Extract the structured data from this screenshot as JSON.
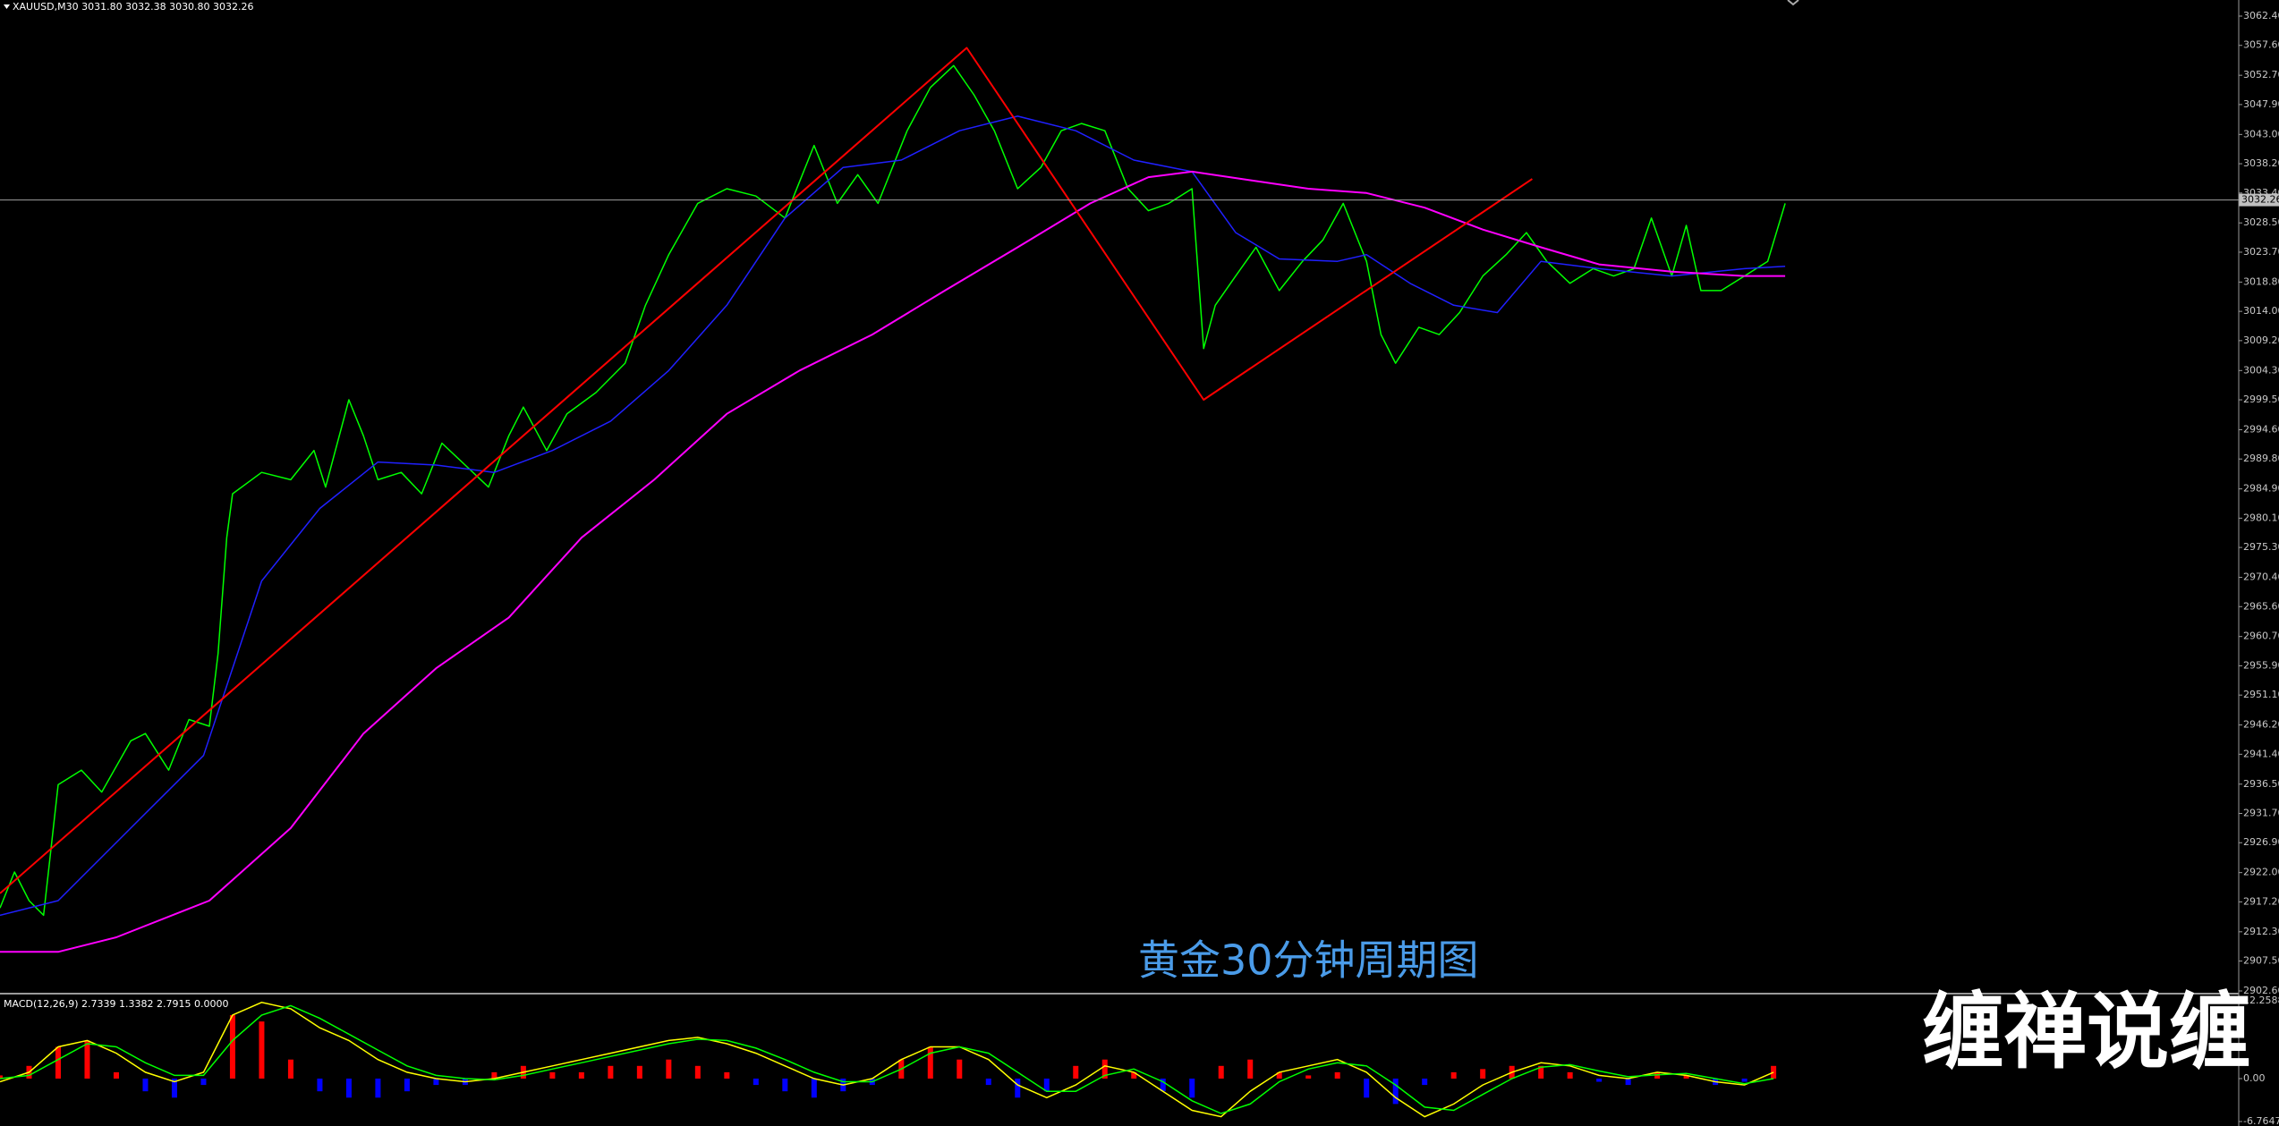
{
  "chart_data": [
    {
      "type": "line",
      "title": "XAUUSD,M30 3031.80 3032.38 3030.80 3032.26",
      "annotation": "黄金30分钟周期图",
      "watermark": "缠禅说缠",
      "xlim": [
        0,
        770
      ],
      "ylim": [
        2902.6,
        3062.4
      ],
      "yticks": [
        {
          "value": 3062.4,
          "label": "3062.40"
        },
        {
          "value": 3057.6,
          "label": "3057.60"
        },
        {
          "value": 3052.7,
          "label": "3052.70"
        },
        {
          "value": 3047.9,
          "label": "3047.90"
        },
        {
          "value": 3043.0,
          "label": "3043.00"
        },
        {
          "value": 3038.2,
          "label": "3038.20"
        },
        {
          "value": 3033.4,
          "label": "3033.40"
        },
        {
          "value": 3028.5,
          "label": "3028.50"
        },
        {
          "value": 3023.7,
          "label": "3023.70"
        },
        {
          "value": 3018.8,
          "label": "3018.80"
        },
        {
          "value": 3014.0,
          "label": "3014.00"
        },
        {
          "value": 3009.2,
          "label": "3009.20"
        },
        {
          "value": 3004.3,
          "label": "3004.30"
        },
        {
          "value": 2999.5,
          "label": "2999.50"
        },
        {
          "value": 2994.6,
          "label": "2994.60"
        },
        {
          "value": 2989.8,
          "label": "2989.80"
        },
        {
          "value": 2984.9,
          "label": "2984.90"
        },
        {
          "value": 2980.1,
          "label": "2980.10"
        },
        {
          "value": 2975.3,
          "label": "2975.30"
        },
        {
          "value": 2970.4,
          "label": "2970.40"
        },
        {
          "value": 2965.6,
          "label": "2965.60"
        },
        {
          "value": 2960.7,
          "label": "2960.70"
        },
        {
          "value": 2955.9,
          "label": "2955.90"
        },
        {
          "value": 2951.1,
          "label": "2951.10"
        },
        {
          "value": 2946.2,
          "label": "2946.20"
        },
        {
          "value": 2941.4,
          "label": "2941.40"
        },
        {
          "value": 2936.5,
          "label": "2936.50"
        },
        {
          "value": 2931.7,
          "label": "2931.70"
        },
        {
          "value": 2926.9,
          "label": "2926.90"
        },
        {
          "value": 2922.0,
          "label": "2922.00"
        },
        {
          "value": 2917.2,
          "label": "2917.20"
        },
        {
          "value": 2912.3,
          "label": "2912.30"
        },
        {
          "value": 2907.5,
          "label": "2907.50"
        },
        {
          "value": 2902.6,
          "label": "2902.60"
        }
      ],
      "current_price": 3032.26,
      "series": [
        {
          "color": "#00ff00",
          "width": 1.5,
          "x": [
            0,
            5,
            10,
            15,
            20,
            28,
            35,
            45,
            50,
            58,
            65,
            72,
            75,
            78,
            80,
            90,
            100,
            108,
            112,
            120,
            125,
            130,
            138,
            145,
            152,
            160,
            168,
            175,
            180,
            188,
            195,
            205,
            215,
            222,
            230,
            240,
            250,
            260,
            270,
            280,
            288,
            295,
            302,
            312,
            320,
            328,
            335,
            342,
            350,
            358,
            365,
            372,
            380,
            388,
            395,
            402,
            410,
            414,
            418,
            425,
            432,
            440,
            448,
            455,
            462,
            470,
            475,
            480,
            488,
            495,
            502,
            510,
            518,
            525,
            532,
            540,
            548,
            555,
            562,
            568,
            575,
            580,
            585,
            592,
            600,
            608,
            614
          ],
          "values": [
            2916.2,
            2922.1,
            2917.4,
            2915.0,
            2936.4,
            2938.8,
            2935.2,
            2943.6,
            2944.8,
            2938.8,
            2947.1,
            2946.0,
            2957.9,
            2976.9,
            2984.1,
            2987.6,
            2986.4,
            2991.2,
            2985.2,
            2999.5,
            2993.6,
            2986.4,
            2987.6,
            2984.1,
            2992.4,
            2988.8,
            2985.2,
            2993.6,
            2998.3,
            2991.2,
            2997.2,
            3000.7,
            3005.5,
            3015.0,
            3023.3,
            3031.7,
            3034.1,
            3032.9,
            3029.3,
            3041.2,
            3031.7,
            3036.4,
            3031.7,
            3043.6,
            3050.7,
            3054.3,
            3049.5,
            3043.6,
            3034.1,
            3037.6,
            3043.6,
            3044.8,
            3043.6,
            3034.1,
            3030.5,
            3031.7,
            3034.1,
            3007.9,
            3015.0,
            3019.8,
            3024.5,
            3017.4,
            3022.2,
            3025.7,
            3031.7,
            3022.2,
            3010.2,
            3005.5,
            3011.4,
            3010.2,
            3013.8,
            3019.8,
            3023.3,
            3026.9,
            3022.2,
            3018.6,
            3021.0,
            3019.8,
            3021.0,
            3029.3,
            3019.8,
            3028.1,
            3017.4,
            3017.4,
            3019.8,
            3022.2,
            3031.7
          ]
        },
        {
          "color": "#2020ff",
          "width": 1.5,
          "x": [
            0,
            20,
            50,
            70,
            90,
            110,
            130,
            150,
            170,
            190,
            210,
            230,
            250,
            270,
            290,
            310,
            330,
            350,
            370,
            390,
            410,
            425,
            440,
            460,
            470,
            485,
            500,
            515,
            530,
            550,
            575,
            600,
            614
          ],
          "values": [
            2915.0,
            2917.4,
            2931.7,
            2941.2,
            2969.8,
            2981.7,
            2989.3,
            2988.8,
            2987.6,
            2991.2,
            2996.0,
            3004.3,
            3015.0,
            3029.3,
            3037.6,
            3038.8,
            3043.6,
            3046.0,
            3043.6,
            3038.8,
            3036.9,
            3026.9,
            3022.6,
            3022.2,
            3023.3,
            3018.6,
            3015.0,
            3013.8,
            3022.2,
            3021.0,
            3019.8,
            3021.0,
            3021.4
          ]
        },
        {
          "color": "#ff00ff",
          "width": 2,
          "x": [
            0,
            20,
            40,
            72,
            100,
            125,
            150,
            175,
            200,
            225,
            250,
            275,
            300,
            325,
            350,
            375,
            395,
            410,
            430,
            450,
            470,
            490,
            510,
            530,
            550,
            575,
            600,
            614
          ],
          "values": [
            2909.0,
            2909.0,
            2911.4,
            2917.4,
            2929.3,
            2944.8,
            2955.5,
            2963.8,
            2976.9,
            2986.4,
            2997.2,
            3004.3,
            3010.2,
            3017.4,
            3024.5,
            3031.7,
            3036.0,
            3036.9,
            3035.5,
            3034.1,
            3033.4,
            3031.0,
            3027.4,
            3024.5,
            3021.7,
            3020.5,
            3019.8,
            3019.8
          ]
        },
        {
          "color": "#ff0000",
          "width": 2,
          "x": [
            0,
            332.5,
            414,
            527
          ],
          "values": [
            2918.6,
            3057.2,
            2999.5,
            3035.7
          ]
        }
      ]
    },
    {
      "type": "macd",
      "title": "MACD(12,26,9) 2.7339 1.3382 2.7915 0.0000",
      "xlim": [
        0,
        770
      ],
      "ylim": [
        -6.7647,
        12.2588
      ],
      "yticks": [
        12.2588,
        {
          "value": 0,
          "label": "0.00"
        },
        -6.7647
      ],
      "x": [
        0,
        10,
        20,
        30,
        40,
        50,
        60,
        70,
        80,
        90,
        100,
        110,
        120,
        130,
        140,
        150,
        160,
        170,
        180,
        190,
        200,
        210,
        220,
        230,
        240,
        250,
        260,
        270,
        280,
        290,
        300,
        310,
        320,
        330,
        340,
        350,
        360,
        370,
        380,
        390,
        400,
        410,
        420,
        430,
        440,
        450,
        460,
        470,
        480,
        490,
        500,
        510,
        520,
        530,
        540,
        550,
        560,
        570,
        580,
        590,
        600,
        610
      ],
      "series": [
        {
          "kind": "histogram",
          "color": "#ff0000",
          "negative_color": "#0000ff",
          "values": [
            0.5,
            2,
            5,
            6,
            1,
            -2,
            -3,
            -1,
            10,
            9,
            3,
            -2,
            -3,
            -3,
            -2,
            -1,
            -1,
            1,
            2,
            1,
            1,
            2,
            2,
            3,
            2,
            1,
            -1,
            -2,
            -3,
            -2,
            -1,
            3,
            5,
            3,
            -1,
            -3,
            -2,
            2,
            3,
            1,
            -2,
            -3,
            2,
            3,
            1,
            0.5,
            1,
            -3,
            -4,
            -1,
            1,
            1.5,
            2,
            2,
            1,
            -0.5,
            -1,
            1,
            0.5,
            -1,
            -0.5,
            2
          ]
        },
        {
          "kind": "line",
          "color": "#ffff00",
          "values": [
            -0.5,
            1,
            5,
            6,
            4,
            1,
            -0.5,
            1,
            10,
            12,
            11,
            8,
            6,
            3,
            1,
            0,
            -0.5,
            0,
            1,
            2,
            3,
            4,
            5,
            6,
            6.5,
            5.5,
            4,
            2,
            0,
            -1,
            0,
            3,
            5,
            5,
            3,
            -1,
            -3,
            -1,
            2,
            1,
            -2,
            -5,
            -6,
            -2,
            1,
            2,
            3,
            1,
            -3,
            -6,
            -4,
            -1,
            1,
            2.5,
            2,
            0.5,
            0,
            1,
            0.5,
            -0.5,
            -1,
            1
          ]
        },
        {
          "kind": "line",
          "color": "#00ff00",
          "values": [
            0,
            0.5,
            3,
            5.5,
            5,
            2.5,
            0.5,
            0.5,
            6,
            10,
            11.5,
            9.5,
            7,
            4.5,
            2,
            0.5,
            0,
            -0.2,
            0.5,
            1.5,
            2.5,
            3.5,
            4.5,
            5.5,
            6.2,
            6,
            4.8,
            3,
            1,
            -0.5,
            -0.5,
            1.5,
            4,
            5,
            4,
            1,
            -2,
            -2,
            0.5,
            1.5,
            -0.5,
            -3.5,
            -5.5,
            -4,
            -0.5,
            1.5,
            2.5,
            2,
            -1,
            -4.5,
            -5,
            -2.5,
            0,
            1.8,
            2.2,
            1.2,
            0.3,
            0.6,
            0.8,
            0,
            -0.8,
            0
          ]
        }
      ]
    }
  ]
}
